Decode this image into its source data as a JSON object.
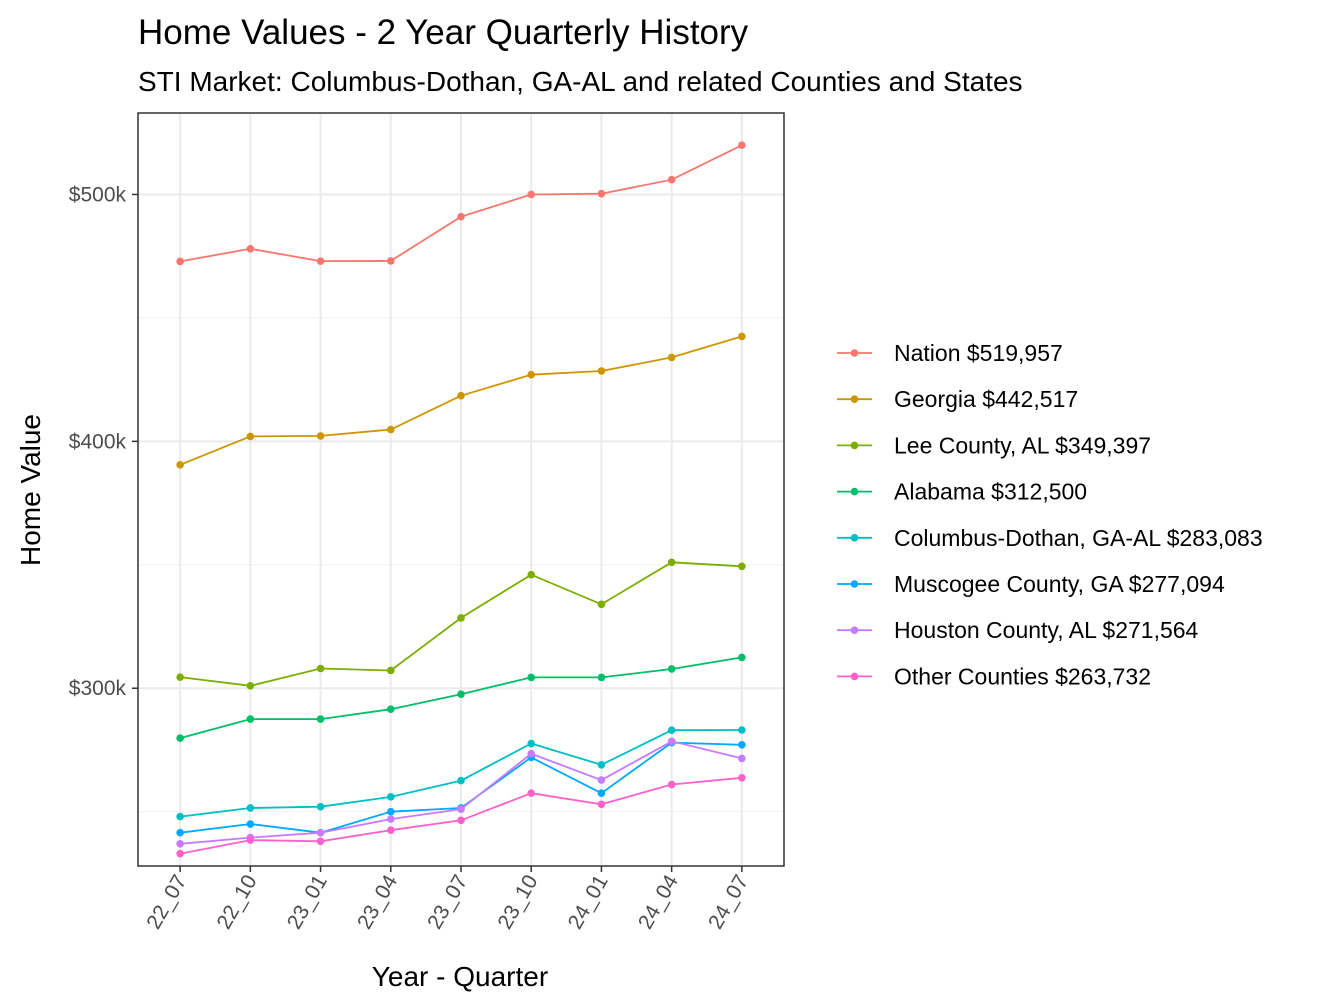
{
  "chart_data": {
    "type": "line",
    "title": "Home Values - 2 Year Quarterly History",
    "subtitle": "STI Market: Columbus-Dothan,  GA-AL and related Counties and States",
    "xlabel": "Year - Quarter",
    "ylabel": "Home Value",
    "categories": [
      "22_07",
      "22_10",
      "23_01",
      "23_04",
      "23_07",
      "23_10",
      "24_01",
      "24_04",
      "24_07"
    ],
    "ylim": [
      228000,
      533000
    ],
    "yticks": [
      300000,
      400000,
      500000
    ],
    "ytick_labels": [
      "$300k",
      "$400k",
      "$500k"
    ],
    "grid": true,
    "legend_position": "right",
    "series": [
      {
        "name": "Nation $519,957",
        "color": "#F8766D",
        "values": [
          472900,
          478000,
          473000,
          473100,
          491000,
          500000,
          500300,
          506000,
          519957
        ]
      },
      {
        "name": "Georgia $442,517",
        "color": "#CD9600",
        "values": [
          390500,
          402000,
          402200,
          404800,
          418500,
          427000,
          428500,
          434000,
          442517
        ]
      },
      {
        "name": "Lee County, AL $349,397",
        "color": "#7CAE00",
        "values": [
          304500,
          301000,
          308000,
          307200,
          328500,
          346000,
          334000,
          351000,
          349397
        ]
      },
      {
        "name": "Alabama $312,500",
        "color": "#00BE67",
        "values": [
          279800,
          287500,
          287500,
          291500,
          297600,
          304400,
          304400,
          307800,
          312500
        ]
      },
      {
        "name": "Columbus-Dothan,  GA-AL $283,083",
        "color": "#00BFC4",
        "values": [
          248000,
          251500,
          252000,
          256000,
          262600,
          277600,
          269000,
          283000,
          283083
        ]
      },
      {
        "name": "Muscogee County, GA $277,094",
        "color": "#00A9FF",
        "values": [
          241500,
          245000,
          241500,
          250000,
          251500,
          272000,
          257500,
          278000,
          277094
        ]
      },
      {
        "name": "Houston County, AL $271,564",
        "color": "#C77CFF",
        "values": [
          237000,
          239500,
          241500,
          247000,
          251000,
          273500,
          262800,
          278500,
          271564
        ]
      },
      {
        "name": "Other Counties $263,732",
        "color": "#FF61CC",
        "values": [
          233000,
          238500,
          238000,
          242500,
          246500,
          257500,
          253000,
          261000,
          263732
        ]
      }
    ]
  }
}
